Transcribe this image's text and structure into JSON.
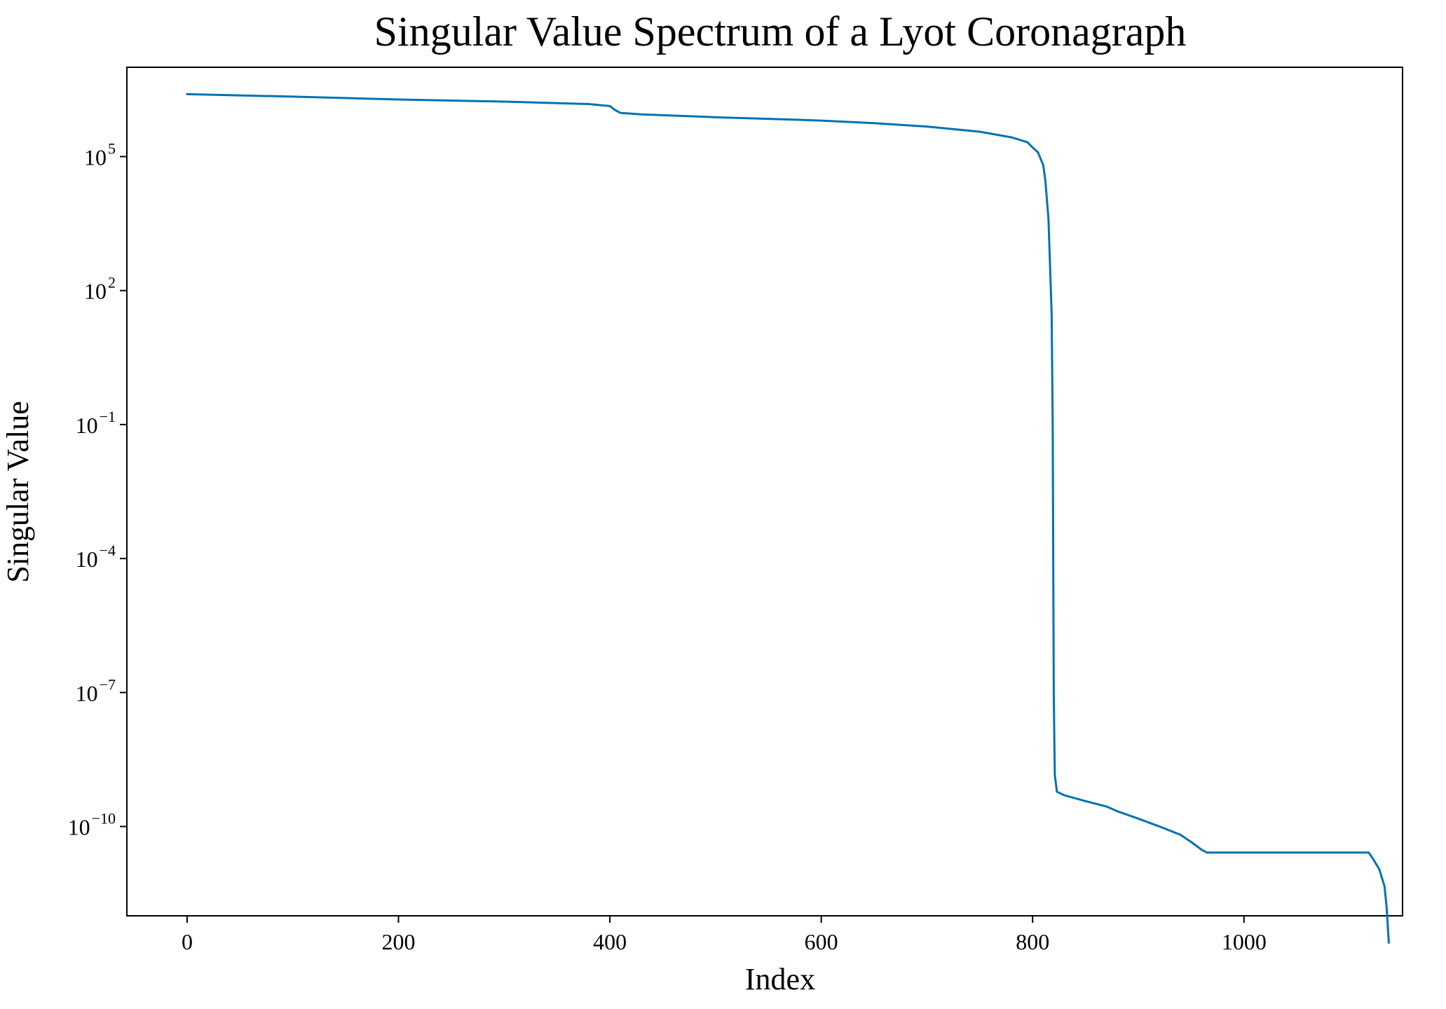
{
  "chart_data": {
    "type": "line",
    "title": "Singular Value Spectrum of a Lyot Coronagraph",
    "xlabel": "Index",
    "ylabel": "Singular Value",
    "xlim": [
      -57,
      1150
    ],
    "ylim": [
      1e-12,
      10000000.0
    ],
    "yscale": "log",
    "grid": false,
    "line_color": "#0072B2",
    "x_ticks": [
      {
        "value": 0,
        "label": "0"
      },
      {
        "value": 200,
        "label": "200"
      },
      {
        "value": 400,
        "label": "400"
      },
      {
        "value": 600,
        "label": "600"
      },
      {
        "value": 800,
        "label": "800"
      },
      {
        "value": 1000,
        "label": "1000"
      }
    ],
    "y_ticks": [
      {
        "value": 100000.0,
        "base": "10",
        "exponent": "5"
      },
      {
        "value": 100.0,
        "base": "10",
        "exponent": "2"
      },
      {
        "value": 0.1,
        "base": "10",
        "exponent": "−1"
      },
      {
        "value": 0.0001,
        "base": "10",
        "exponent": "−4"
      },
      {
        "value": 1e-07,
        "base": "10",
        "exponent": "−7"
      },
      {
        "value": 1e-10,
        "base": "10",
        "exponent": "−10"
      }
    ],
    "series": [
      {
        "x": [
          0,
          100,
          200,
          300,
          380,
          400,
          405,
          410,
          430,
          500,
          550,
          600,
          650,
          700,
          750,
          780,
          795,
          800,
          805,
          810,
          812,
          815,
          818,
          819,
          820,
          820.5,
          821,
          823,
          830,
          850,
          870,
          880,
          900,
          920,
          940,
          950,
          960,
          965,
          1000,
          1050,
          1100,
          1118,
          1122,
          1128,
          1133,
          1135,
          1137
        ],
        "y": [
          2500000.0,
          2200000.0,
          1900000.0,
          1700000.0,
          1500000.0,
          1350000.0,
          1100000.0,
          950000.0,
          880000.0,
          760000.0,
          700000.0,
          640000.0,
          560000.0,
          470000.0,
          360000.0,
          270000.0,
          210000.0,
          160000.0,
          125000.0,
          65000.0,
          30000.0,
          4000.0,
          30,
          0.1,
          1e-07,
          1e-08,
          1.4e-09,
          6e-10,
          5e-10,
          3.7e-10,
          2.8e-10,
          2.2e-10,
          1.5e-10,
          1e-10,
          6.5e-11,
          4.5e-11,
          3e-11,
          2.6e-11,
          2.6e-11,
          2.6e-11,
          2.6e-11,
          2.6e-11,
          1.9e-11,
          1.1e-11,
          4.5e-12,
          1.5e-12,
          2.5e-13
        ]
      }
    ]
  }
}
